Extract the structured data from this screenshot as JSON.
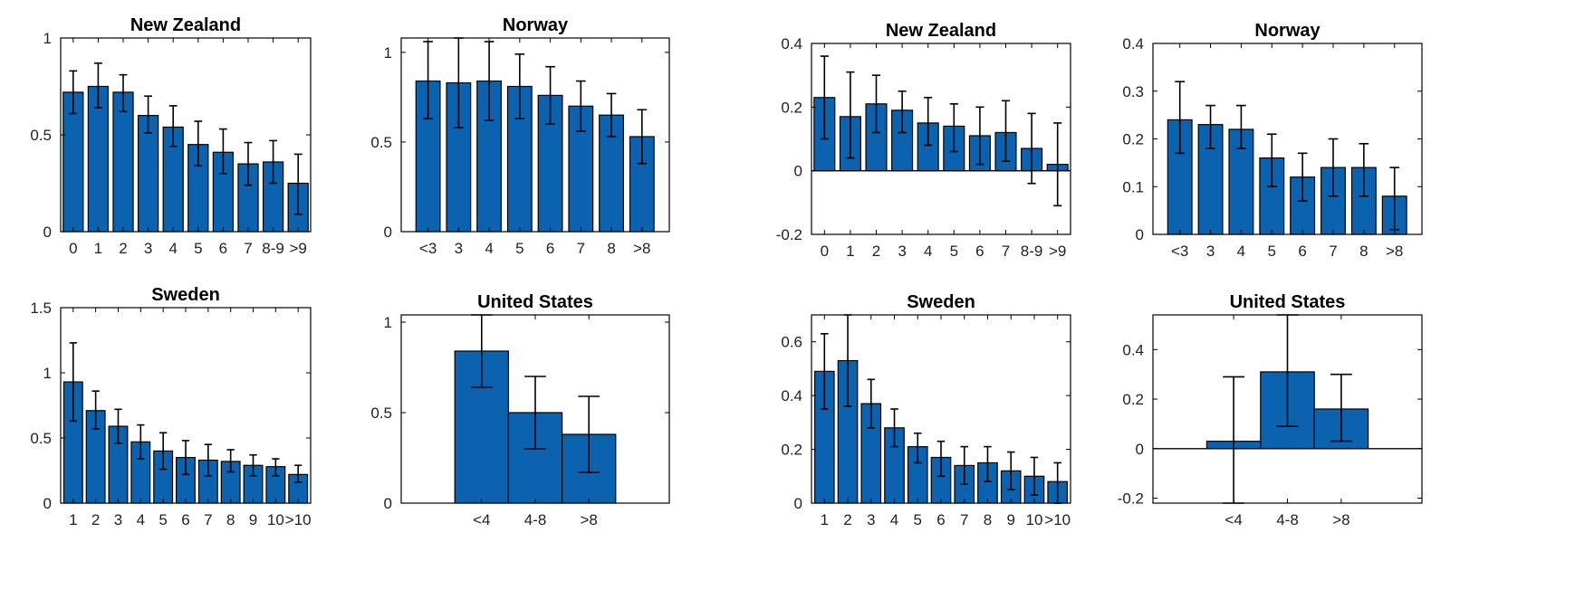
{
  "chart_data": [
    {
      "type": "bar",
      "title": "New Zealand",
      "categories": [
        "0",
        "1",
        "2",
        "3",
        "4",
        "5",
        "6",
        "7",
        "8-9",
        ">9"
      ],
      "values": [
        0.72,
        0.75,
        0.72,
        0.6,
        0.54,
        0.45,
        0.41,
        0.35,
        0.36,
        0.25
      ],
      "error_low": [
        0.61,
        0.64,
        0.62,
        0.51,
        0.44,
        0.34,
        0.3,
        0.24,
        0.25,
        0.09
      ],
      "error_high": [
        0.83,
        0.87,
        0.81,
        0.7,
        0.65,
        0.57,
        0.53,
        0.46,
        0.47,
        0.4
      ],
      "ylim": [
        0,
        1
      ],
      "yticks": [
        0,
        0.5,
        1
      ],
      "ytick_labels": [
        "0",
        "0.5",
        "1"
      ],
      "xlabel": "",
      "ylabel": "",
      "grid": false
    },
    {
      "type": "bar",
      "title": "Norway",
      "categories": [
        "<3",
        "3",
        "4",
        "5",
        "6",
        "7",
        "8",
        ">8"
      ],
      "values": [
        0.84,
        0.83,
        0.84,
        0.81,
        0.76,
        0.7,
        0.65,
        0.53
      ],
      "error_low": [
        0.63,
        0.58,
        0.62,
        0.63,
        0.6,
        0.56,
        0.53,
        0.38
      ],
      "error_high": [
        1.06,
        1.08,
        1.06,
        0.99,
        0.92,
        0.84,
        0.77,
        0.68
      ],
      "ylim": [
        0,
        1.08
      ],
      "yticks": [
        0,
        0.5,
        1
      ],
      "ytick_labels": [
        "0",
        "0.5",
        "1"
      ],
      "xlabel": "",
      "ylabel": "",
      "grid": false
    },
    {
      "type": "bar",
      "title": "New Zealand",
      "categories": [
        "0",
        "1",
        "2",
        "3",
        "4",
        "5",
        "6",
        "7",
        "8-9",
        ">9"
      ],
      "values": [
        0.23,
        0.17,
        0.21,
        0.19,
        0.15,
        0.14,
        0.11,
        0.12,
        0.07,
        0.02
      ],
      "error_low": [
        0.1,
        0.04,
        0.12,
        0.12,
        0.08,
        0.06,
        0.02,
        0.03,
        -0.04,
        -0.11
      ],
      "error_high": [
        0.36,
        0.31,
        0.3,
        0.25,
        0.23,
        0.21,
        0.2,
        0.22,
        0.18,
        0.15
      ],
      "ylim": [
        -0.2,
        0.4
      ],
      "yticks": [
        -0.2,
        0,
        0.2,
        0.4
      ],
      "ytick_labels": [
        "-0.2",
        "0",
        "0.2",
        "0.4"
      ],
      "xlabel": "",
      "ylabel": "",
      "grid": false
    },
    {
      "type": "bar",
      "title": "Norway",
      "categories": [
        "<3",
        "3",
        "4",
        "5",
        "6",
        "7",
        "8",
        ">8"
      ],
      "values": [
        0.24,
        0.23,
        0.22,
        0.16,
        0.12,
        0.14,
        0.14,
        0.08
      ],
      "error_low": [
        0.17,
        0.18,
        0.18,
        0.1,
        0.07,
        0.08,
        0.08,
        0.01
      ],
      "error_high": [
        0.32,
        0.27,
        0.27,
        0.21,
        0.17,
        0.2,
        0.19,
        0.14
      ],
      "ylim": [
        0,
        0.4
      ],
      "yticks": [
        0,
        0.1,
        0.2,
        0.3,
        0.4
      ],
      "ytick_labels": [
        "0",
        "0.1",
        "0.2",
        "0.3",
        "0.4"
      ],
      "xlabel": "",
      "ylabel": "",
      "grid": false
    },
    {
      "type": "bar",
      "title": "Sweden",
      "categories": [
        "1",
        "2",
        "3",
        "4",
        "5",
        "6",
        "7",
        "8",
        "9",
        "10",
        ">10"
      ],
      "values": [
        0.93,
        0.71,
        0.59,
        0.47,
        0.4,
        0.35,
        0.33,
        0.32,
        0.29,
        0.28,
        0.22
      ],
      "error_low": [
        0.63,
        0.57,
        0.46,
        0.34,
        0.26,
        0.22,
        0.21,
        0.24,
        0.21,
        0.21,
        0.16
      ],
      "error_high": [
        1.23,
        0.86,
        0.72,
        0.6,
        0.54,
        0.48,
        0.45,
        0.41,
        0.37,
        0.34,
        0.29
      ],
      "ylim": [
        0,
        1.5
      ],
      "yticks": [
        0,
        0.5,
        1,
        1.5
      ],
      "ytick_labels": [
        "0",
        "0.5",
        "1",
        "1.5"
      ],
      "xlabel": "",
      "ylabel": "",
      "grid": false
    },
    {
      "type": "bar",
      "title": "United States",
      "categories": [
        "<4",
        "4-8",
        ">8"
      ],
      "values": [
        0.84,
        0.5,
        0.38
      ],
      "error_low": [
        0.64,
        0.3,
        0.17
      ],
      "error_high": [
        1.04,
        0.7,
        0.59
      ],
      "ylim": [
        0,
        1.04
      ],
      "yticks": [
        0,
        0.5,
        1
      ],
      "ytick_labels": [
        "0",
        "0.5",
        "1"
      ],
      "xlabel": "",
      "ylabel": "",
      "grid": false
    },
    {
      "type": "bar",
      "title": "Sweden",
      "categories": [
        "1",
        "2",
        "3",
        "4",
        "5",
        "6",
        "7",
        "8",
        "9",
        "10",
        ">10"
      ],
      "values": [
        0.49,
        0.53,
        0.37,
        0.28,
        0.21,
        0.17,
        0.14,
        0.15,
        0.12,
        0.1,
        0.08
      ],
      "error_low": [
        0.35,
        0.36,
        0.28,
        0.21,
        0.15,
        0.1,
        0.07,
        0.08,
        0.05,
        0.03,
        0.0
      ],
      "error_high": [
        0.63,
        0.7,
        0.46,
        0.35,
        0.26,
        0.23,
        0.21,
        0.21,
        0.19,
        0.17,
        0.15
      ],
      "ylim": [
        0,
        0.7
      ],
      "yticks": [
        0,
        0.2,
        0.4,
        0.6
      ],
      "ytick_labels": [
        "0",
        "0.2",
        "0.4",
        "0.6"
      ],
      "xlabel": "",
      "ylabel": "",
      "grid": false
    },
    {
      "type": "bar",
      "title": "United States",
      "categories": [
        "<4",
        "4-8",
        ">8"
      ],
      "values": [
        0.03,
        0.31,
        0.16
      ],
      "error_low": [
        -0.22,
        0.09,
        0.03
      ],
      "error_high": [
        0.29,
        0.54,
        0.3
      ],
      "ylim": [
        -0.22,
        0.54
      ],
      "yticks": [
        -0.2,
        0,
        0.2,
        0.4
      ],
      "ytick_labels": [
        "-0.2",
        "0",
        "0.2",
        "0.4"
      ],
      "xlabel": "",
      "ylabel": "",
      "grid": false
    }
  ],
  "colors": {
    "bar": "#0b63b0",
    "axis": "#000000"
  }
}
